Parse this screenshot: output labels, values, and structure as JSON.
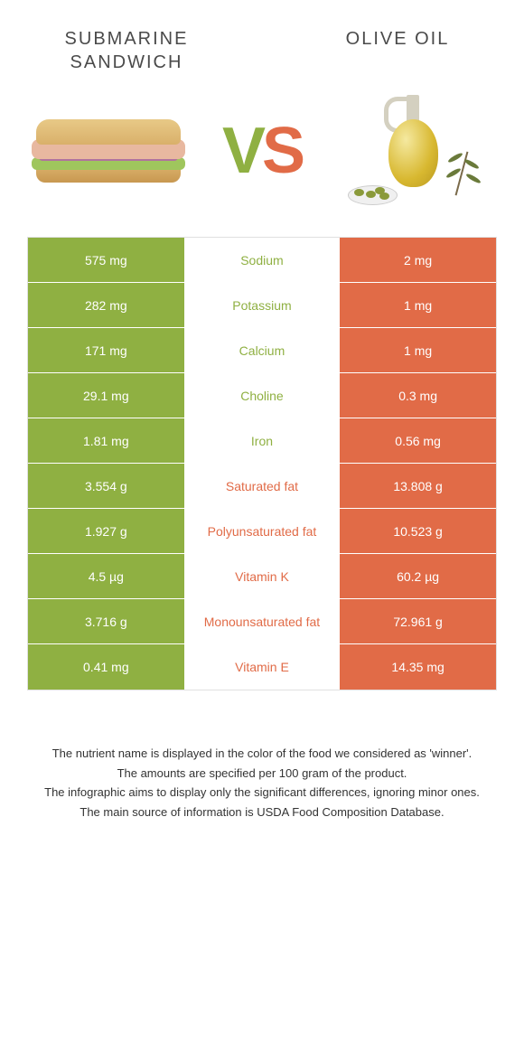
{
  "header": {
    "left_title": "Submarine Sandwich",
    "right_title": "Olive Oil"
  },
  "vs": {
    "v": "V",
    "s": "S"
  },
  "colors": {
    "green": "#8fb042",
    "orange": "#e16b47",
    "title_text": "#4a4a4a"
  },
  "table": {
    "rows": [
      {
        "nutrient": "Sodium",
        "left": "575 mg",
        "right": "2 mg",
        "winner": "left"
      },
      {
        "nutrient": "Potassium",
        "left": "282 mg",
        "right": "1 mg",
        "winner": "left"
      },
      {
        "nutrient": "Calcium",
        "left": "171 mg",
        "right": "1 mg",
        "winner": "left"
      },
      {
        "nutrient": "Choline",
        "left": "29.1 mg",
        "right": "0.3 mg",
        "winner": "left"
      },
      {
        "nutrient": "Iron",
        "left": "1.81 mg",
        "right": "0.56 mg",
        "winner": "left"
      },
      {
        "nutrient": "Saturated fat",
        "left": "3.554 g",
        "right": "13.808 g",
        "winner": "right"
      },
      {
        "nutrient": "Polyunsaturated fat",
        "left": "1.927 g",
        "right": "10.523 g",
        "winner": "right"
      },
      {
        "nutrient": "Vitamin K",
        "left": "4.5 µg",
        "right": "60.2 µg",
        "winner": "right"
      },
      {
        "nutrient": "Monounsaturated fat",
        "left": "3.716 g",
        "right": "72.961 g",
        "winner": "right"
      },
      {
        "nutrient": "Vitamin E",
        "left": "0.41 mg",
        "right": "14.35 mg",
        "winner": "right"
      }
    ]
  },
  "footer": {
    "line1": "The nutrient name is displayed in the color of the food we considered as 'winner'.",
    "line2": "The amounts are specified per 100 gram of the product.",
    "line3": "The infographic aims to display only the significant differences, ignoring minor ones.",
    "line4": "The main source of information is USDA Food Composition Database."
  }
}
